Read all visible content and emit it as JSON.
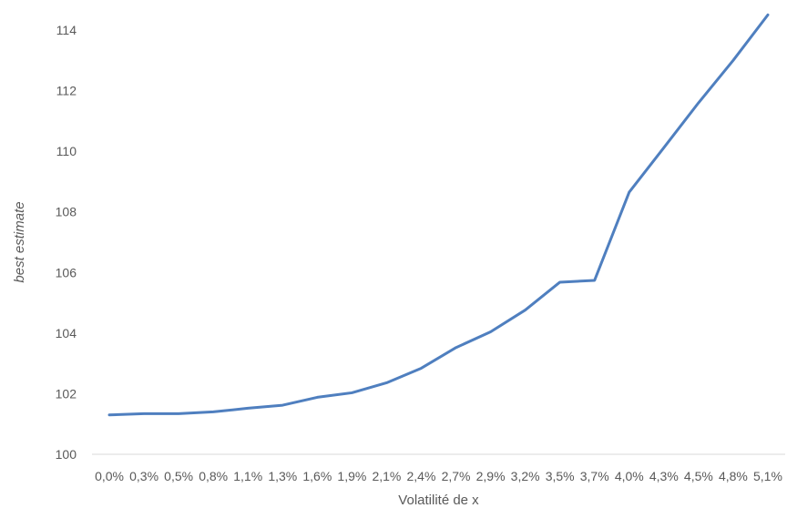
{
  "chart_data": {
    "type": "line",
    "title": "",
    "xlabel": "Volatilité de x",
    "ylabel": "best estimate",
    "ylim": [
      100,
      114
    ],
    "yticks": [
      "100",
      "102",
      "104",
      "106",
      "108",
      "110",
      "112",
      "114"
    ],
    "categories": [
      "0,0%",
      "0,3%",
      "0,5%",
      "0,8%",
      "1,1%",
      "1,3%",
      "1,6%",
      "1,9%",
      "2,1%",
      "2,4%",
      "2,7%",
      "2,9%",
      "3,2%",
      "3,5%",
      "3,7%",
      "4,0%",
      "4,3%",
      "4,5%",
      "4,8%",
      "5,1%"
    ],
    "series": [
      {
        "values": [
          101.3,
          101.34,
          101.34,
          101.4,
          101.52,
          101.62,
          101.88,
          102.03,
          102.36,
          102.84,
          103.52,
          104.04,
          104.76,
          105.68,
          105.74,
          108.65,
          110.12,
          111.6,
          113.0,
          114.5
        ],
        "color": "#4f7fbf"
      }
    ],
    "grid": false,
    "legend": "none",
    "axis_color": "#d9d9d9"
  }
}
